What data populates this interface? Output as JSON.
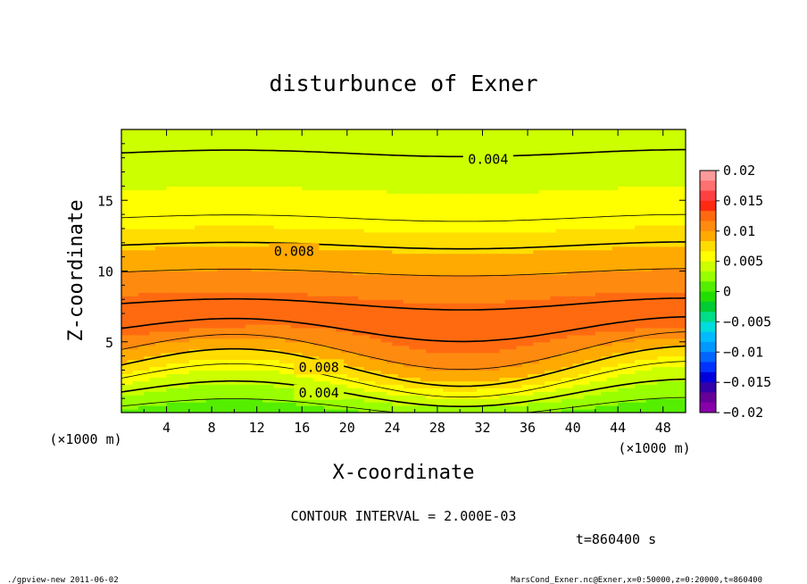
{
  "chart_data": {
    "type": "heatmap",
    "title": "disturbunce of Exner",
    "xlabel": "X-coordinate",
    "ylabel": "Z-coordinate",
    "x_unit_left": "(×1000 m)",
    "x_unit_right": "(×1000 m)",
    "xlim": [
      0,
      50
    ],
    "ylim": [
      0,
      20
    ],
    "x_ticks": [
      "4",
      "8",
      "12",
      "16",
      "20",
      "24",
      "28",
      "32",
      "36",
      "40",
      "44",
      "48"
    ],
    "y_ticks": [
      "5",
      "10",
      "15"
    ],
    "contour_labels": [
      {
        "text": "0.004",
        "x": 32.5,
        "z": 17.9
      },
      {
        "text": "0.008",
        "x": 15.3,
        "z": 11.4
      },
      {
        "text": "0.008",
        "x": 17.5,
        "z": 3.2
      },
      {
        "text": "0.004",
        "x": 17.5,
        "z": 1.4
      }
    ],
    "colorbar": {
      "labels": [
        "0.02",
        "0.015",
        "0.01",
        "0.005",
        "0",
        "−0.005",
        "−0.01",
        "−0.015",
        "−0.02"
      ],
      "levels": [
        0.02,
        0.015,
        0.01,
        0.005,
        0,
        -0.005,
        -0.01,
        -0.015,
        -0.02
      ],
      "colors": [
        "#ff9a9a",
        "#ff7070",
        "#ff4040",
        "#ff2a10",
        "#ff6a10",
        "#ff8a10",
        "#ffaa00",
        "#ffdd00",
        "#ffff00",
        "#ccff00",
        "#99ff00",
        "#55ee00",
        "#22dd00",
        "#00cc33",
        "#00dd88",
        "#00dddd",
        "#00bbff",
        "#0099ff",
        "#0066ff",
        "#0033ff",
        "#0000dd",
        "#3300aa",
        "#660099",
        "#8800aa"
      ]
    },
    "profile": {
      "z": [
        0,
        1,
        2,
        3,
        4,
        5,
        6,
        7,
        8,
        9,
        10,
        11,
        12,
        13,
        14,
        15,
        16,
        17,
        18,
        19,
        20
      ],
      "value": [
        0.0012,
        0.0032,
        0.0052,
        0.0075,
        0.0093,
        0.0112,
        0.0121,
        0.0122,
        0.0119,
        0.011,
        0.0099,
        0.0089,
        0.0078,
        0.0066,
        0.0058,
        0.0053,
        0.0049,
        0.0045,
        0.0041,
        0.0038,
        0.0036
      ]
    },
    "contour_interval": "CONTOUR INTERVAL = 2.000E-03"
  },
  "time_label": "t=860400 s",
  "footer_left": "./gpview-new   2011-06-02",
  "footer_right": "MarsCond_Exner.nc@Exner,x=0:50000,z=0:20000,t=860400"
}
